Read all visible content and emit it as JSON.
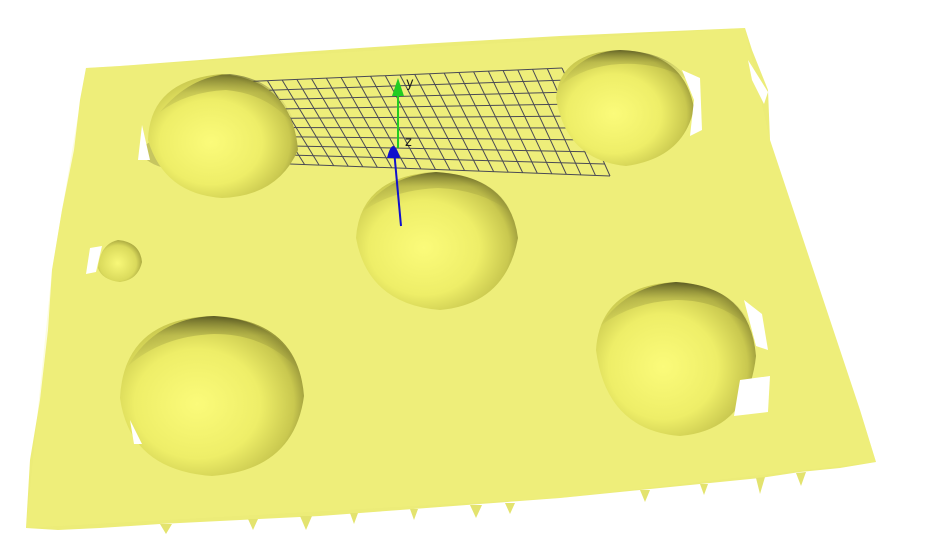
{
  "scene": {
    "surface_color": "#ecec78",
    "background_color": "#ffffff",
    "grid_color": "#4a4a55",
    "shadow_color": "#55552a"
  },
  "axes": {
    "y_label": "y",
    "z_label": "z",
    "y_color": "#22cc22",
    "z_color": "#1111cc"
  },
  "bumps": [
    {
      "name": "bump-top-left"
    },
    {
      "name": "bump-top-right"
    },
    {
      "name": "bump-center"
    },
    {
      "name": "bump-small-left"
    },
    {
      "name": "bump-bottom-left"
    },
    {
      "name": "bump-bottom-right"
    }
  ]
}
